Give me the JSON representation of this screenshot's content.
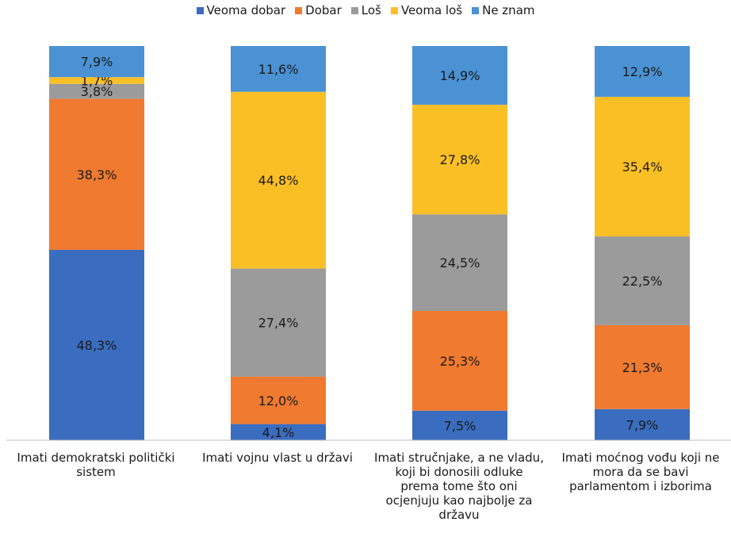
{
  "chart_data": {
    "type": "bar",
    "stacked": true,
    "legend_position": "top",
    "grid": false,
    "ylim": [
      0,
      100
    ],
    "categories": [
      "Imati demokratski politički sistem",
      "Imati vojnu vlast u državi",
      "Imati stručnjake, a ne vladu, koji bi donosili odluke prema tome što oni ocjenjuju kao najbolje za državu",
      "Imati moćnog vođu koji ne mora da se bavi parlamentom i izborima"
    ],
    "series": [
      {
        "name": "Veoma dobar",
        "color": "#3a6dbf",
        "values": [
          48.3,
          4.1,
          7.5,
          7.9
        ],
        "labels": [
          "48,3%",
          "4,1%",
          "7,5%",
          "7,9%"
        ]
      },
      {
        "name": "Dobar",
        "color": "#ef7a30",
        "values": [
          38.3,
          12.0,
          25.3,
          21.3
        ],
        "labels": [
          "38,3%",
          "12,0%",
          "25,3%",
          "21,3%"
        ]
      },
      {
        "name": "Loš",
        "color": "#9b9b9b",
        "values": [
          3.8,
          27.4,
          24.5,
          22.5
        ],
        "labels": [
          "3,8%",
          "27,4%",
          "24,5%",
          "22,5%"
        ]
      },
      {
        "name": "Veoma loš",
        "color": "#fbbf26",
        "values": [
          1.7,
          44.8,
          27.8,
          35.4
        ],
        "labels": [
          "1,7%",
          "44,8%",
          "27,8%",
          "35,4%"
        ]
      },
      {
        "name": "Ne znam",
        "color": "#4a92d4",
        "values": [
          7.9,
          11.6,
          14.9,
          12.9
        ],
        "labels": [
          "7,9%",
          "11,6%",
          "14,9%",
          "12,9%"
        ]
      }
    ]
  },
  "category_labels": {
    "c0": "Imati demokratski politički\nsistem",
    "c1": "Imati vojnu vlast u državi",
    "c2": "Imati stručnjake, a ne vladu,\nkoji bi donosili odluke\nprema tome što oni\nocjenjuju kao najbolje za\ndržavu",
    "c3": "Imati moćnog vođu koji ne\nmora da se bavi\nparlamentom i izborima"
  }
}
